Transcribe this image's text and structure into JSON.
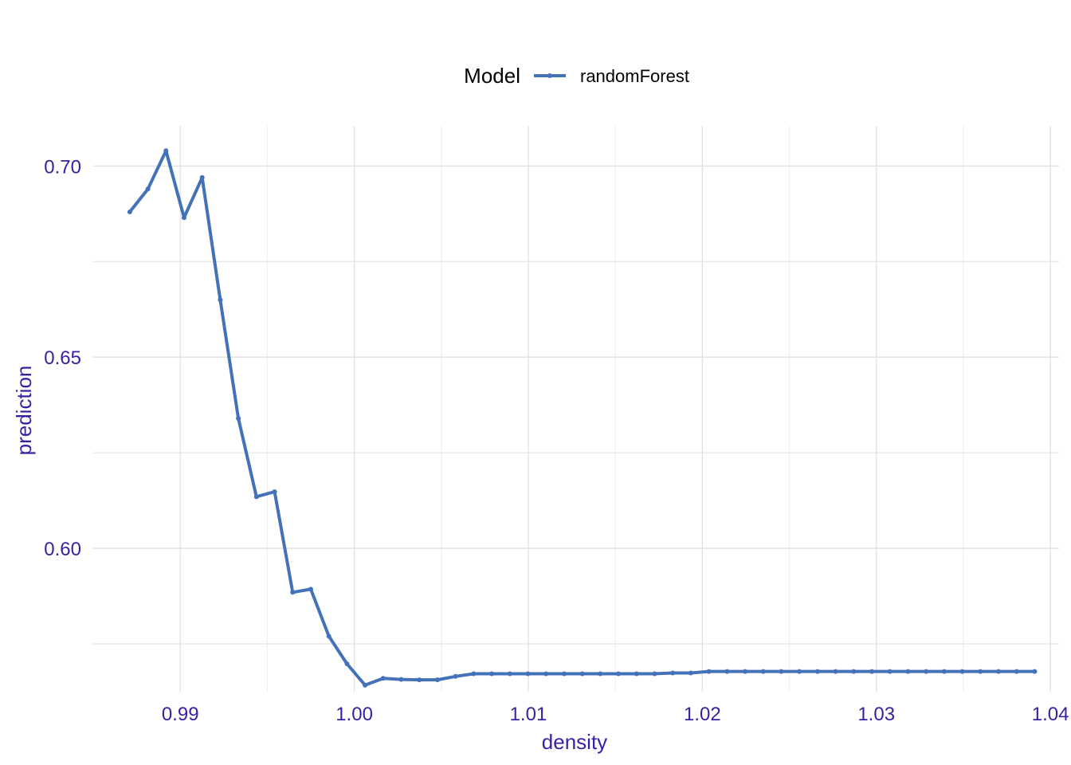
{
  "chart_data": {
    "type": "line",
    "xlabel": "density",
    "ylabel": "prediction",
    "xlim": [
      0.985,
      1.0405
    ],
    "ylim": [
      0.5625,
      0.7105
    ],
    "x_ticks": [
      0.99,
      1.0,
      1.01,
      1.02,
      1.03,
      1.04
    ],
    "x_tick_labels": [
      "0.99",
      "1.00",
      "1.01",
      "1.02",
      "1.03",
      "1.04"
    ],
    "y_ticks": [
      0.6,
      0.65,
      0.7
    ],
    "y_tick_labels": [
      "0.60",
      "0.65",
      "0.70"
    ],
    "grid": true,
    "legend": {
      "title": "Model",
      "position": "top"
    },
    "colors": {
      "series": "#4472b8",
      "text": "#3a1fa0",
      "grid_major": "#e3e3e3",
      "grid_minor": "#f0f0f0"
    },
    "series": [
      {
        "name": "randomForest",
        "x": [
          0.9871,
          0.98814,
          0.98918,
          0.99022,
          0.99126,
          0.9923,
          0.99334,
          0.99438,
          0.99542,
          0.99646,
          0.9975,
          0.99854,
          0.99958,
          1.00062,
          1.00166,
          1.0027,
          1.00374,
          1.00478,
          1.00582,
          1.00686,
          1.0079,
          1.00894,
          1.00998,
          1.01102,
          1.01206,
          1.0131,
          1.01414,
          1.01518,
          1.01622,
          1.01726,
          1.0183,
          1.01934,
          1.02038,
          1.02142,
          1.02246,
          1.0235,
          1.02454,
          1.02558,
          1.02662,
          1.02766,
          1.0287,
          1.02974,
          1.03078,
          1.03182,
          1.03286,
          1.0339,
          1.03494,
          1.03598,
          1.03702,
          1.03806,
          1.0391
        ],
        "y": [
          0.688,
          0.694,
          0.704,
          0.6865,
          0.697,
          0.665,
          0.634,
          0.6135,
          0.6148,
          0.5885,
          0.5893,
          0.577,
          0.5698,
          0.5642,
          0.566,
          0.5657,
          0.5656,
          0.5656,
          0.5665,
          0.5672,
          0.5672,
          0.5672,
          0.5672,
          0.5672,
          0.5672,
          0.5672,
          0.5672,
          0.5672,
          0.5672,
          0.5672,
          0.5674,
          0.5674,
          0.5678,
          0.5678,
          0.5678,
          0.5678,
          0.5678,
          0.5678,
          0.5678,
          0.5678,
          0.5678,
          0.5678,
          0.5678,
          0.5678,
          0.5678,
          0.5678,
          0.5678,
          0.5678,
          0.5678,
          0.5678,
          0.5678
        ]
      }
    ]
  }
}
